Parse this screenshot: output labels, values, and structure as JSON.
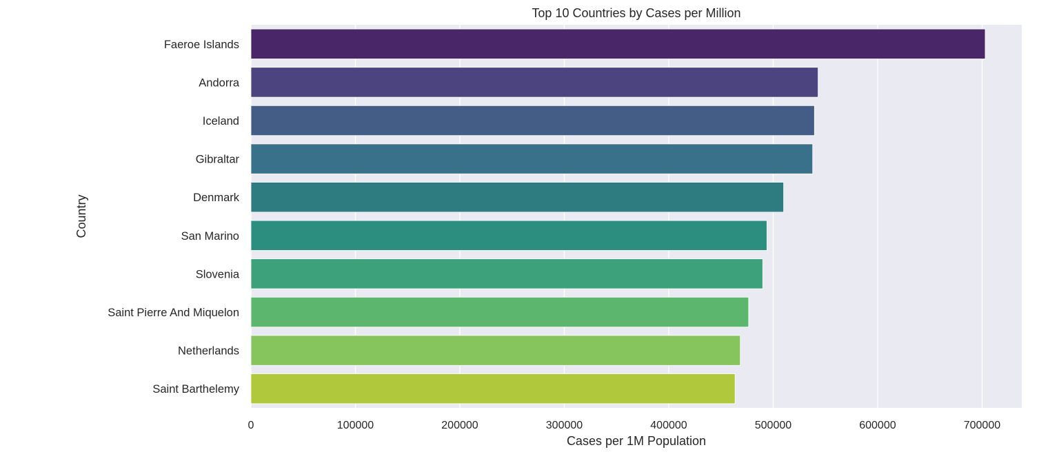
{
  "chart_data": {
    "type": "bar",
    "orientation": "horizontal",
    "title": "Top 10 Countries by Cases per Million",
    "xlabel": "Cases per 1M Population",
    "ylabel": "Country",
    "categories": [
      "Faeroe Islands",
      "Andorra",
      "Iceland",
      "Gibraltar",
      "Denmark",
      "San Marino",
      "Slovenia",
      "Saint Pierre And Miquelon",
      "Netherlands",
      "Saint Barthelemy"
    ],
    "values": [
      703000,
      543000,
      539500,
      537800,
      510000,
      494000,
      490000,
      476500,
      468500,
      463500
    ],
    "colors": [
      "#482668",
      "#4b447e",
      "#435d86",
      "#39708a",
      "#2f7c80",
      "#2c8e7f",
      "#3da27b",
      "#5db66e",
      "#86c45e",
      "#b0c83b"
    ],
    "xlim": [
      0,
      738000
    ],
    "xticks": [
      0,
      100000,
      200000,
      300000,
      400000,
      500000,
      600000,
      700000
    ],
    "xtick_labels": [
      "0",
      "100000",
      "200000",
      "300000",
      "400000",
      "500000",
      "600000",
      "700000"
    ],
    "grid": true,
    "background": "#eaeaf2"
  }
}
